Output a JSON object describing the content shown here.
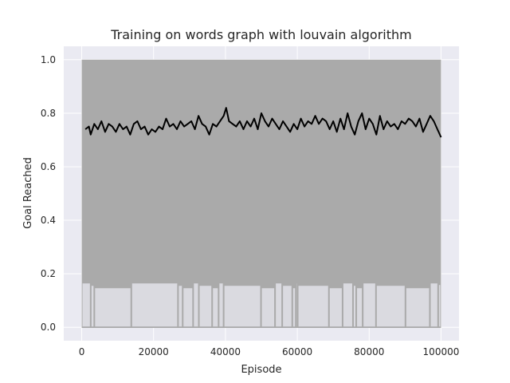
{
  "chart_data": {
    "type": "line",
    "title": "Training on words graph with louvain algorithm",
    "xlabel": "Episode",
    "ylabel": "Goal Reached",
    "xlim": [
      -5000,
      105000
    ],
    "ylim": [
      -0.05,
      1.05
    ],
    "xticks": [
      0,
      20000,
      40000,
      60000,
      80000,
      100000
    ],
    "yticks": [
      0.0,
      0.2,
      0.4,
      0.6,
      0.8,
      1.0
    ],
    "xtick_labels": [
      "0",
      "20000",
      "40000",
      "60000",
      "80000",
      "100000"
    ],
    "ytick_labels": [
      "0.0",
      "0.2",
      "0.4",
      "0.6",
      "0.8",
      "1.0"
    ],
    "grid": true,
    "background": "#eaeaf2",
    "series": [
      {
        "kind": "raw-binary-band",
        "color": "#aaaaaa",
        "x_range": [
          0,
          100000
        ],
        "values": [
          0,
          1
        ],
        "lower_edge_min": 0.17,
        "zero_floor_gaps_x": [
          2500,
          3500,
          13800,
          26800,
          28100,
          31000,
          32600,
          36300,
          38100,
          39500,
          49900,
          53800,
          55800,
          58600,
          59600,
          60100,
          68800,
          72600,
          75500,
          76400,
          78200,
          81900,
          90100,
          96900,
          99200
        ]
      },
      {
        "kind": "rolling-mean",
        "color": "#000000",
        "x": [
          1000,
          2000,
          2500,
          3500,
          4500,
          5500,
          6500,
          7500,
          8500,
          9500,
          10500,
          11500,
          12500,
          13500,
          14500,
          15500,
          16500,
          17500,
          18500,
          19500,
          20500,
          21500,
          22500,
          23500,
          24500,
          25500,
          26500,
          27500,
          28500,
          29500,
          30500,
          31500,
          32500,
          33500,
          34500,
          35500,
          36500,
          37500,
          38500,
          39500,
          40200,
          41000,
          42000,
          43000,
          44000,
          45000,
          46000,
          47000,
          48000,
          49000,
          50000,
          51000,
          52000,
          53000,
          54000,
          55000,
          56000,
          57000,
          58000,
          59000,
          60000,
          61000,
          62000,
          63000,
          64000,
          65000,
          66000,
          67000,
          68000,
          69000,
          70000,
          71000,
          72000,
          73000,
          74000,
          75000,
          76000,
          77000,
          78000,
          79000,
          80000,
          81000,
          82000,
          83000,
          84000,
          85000,
          86000,
          87000,
          88000,
          89000,
          90000,
          91000,
          92000,
          93000,
          94000,
          95000,
          96000,
          97000,
          98000,
          99000,
          100000
        ],
        "values": [
          0.74,
          0.75,
          0.72,
          0.76,
          0.74,
          0.77,
          0.73,
          0.76,
          0.75,
          0.73,
          0.76,
          0.74,
          0.75,
          0.72,
          0.76,
          0.77,
          0.74,
          0.75,
          0.72,
          0.74,
          0.73,
          0.75,
          0.74,
          0.78,
          0.75,
          0.76,
          0.74,
          0.77,
          0.75,
          0.76,
          0.77,
          0.74,
          0.79,
          0.76,
          0.75,
          0.72,
          0.76,
          0.75,
          0.77,
          0.79,
          0.82,
          0.77,
          0.76,
          0.75,
          0.77,
          0.74,
          0.77,
          0.75,
          0.78,
          0.74,
          0.8,
          0.77,
          0.75,
          0.78,
          0.76,
          0.74,
          0.77,
          0.75,
          0.73,
          0.76,
          0.74,
          0.78,
          0.75,
          0.77,
          0.76,
          0.79,
          0.76,
          0.78,
          0.77,
          0.74,
          0.77,
          0.73,
          0.78,
          0.74,
          0.8,
          0.75,
          0.72,
          0.77,
          0.8,
          0.74,
          0.78,
          0.76,
          0.72,
          0.79,
          0.74,
          0.77,
          0.75,
          0.76,
          0.74,
          0.77,
          0.76,
          0.78,
          0.77,
          0.75,
          0.78,
          0.73,
          0.76,
          0.79,
          0.77,
          0.74,
          0.71
        ]
      }
    ]
  }
}
